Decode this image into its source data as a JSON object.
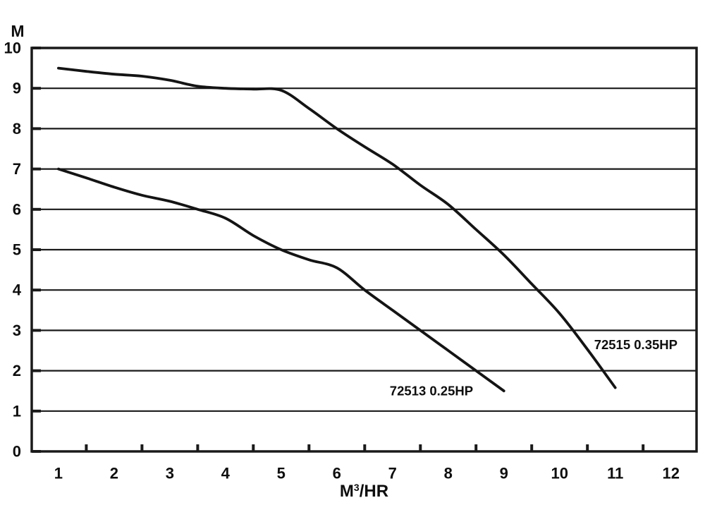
{
  "page": {
    "background": "#ffffff",
    "text_color": "#0e0e0e"
  },
  "y_axis": {
    "title": "M"
  },
  "x_axis": {
    "title_main": "M",
    "title_sup": "3",
    "title_rest": "/HR",
    "title_full": "M³/HR"
  },
  "chart_data": {
    "type": "line",
    "title": "",
    "xlabel": "M³/HR",
    "ylabel": "M",
    "xlim": [
      0.52,
      12.46
    ],
    "ylim": [
      0,
      10
    ],
    "x_tick_labels": [
      1,
      2,
      3,
      4,
      5,
      6,
      7,
      8,
      9,
      10,
      11,
      12
    ],
    "x_tick_marks": [
      1.5,
      2.5,
      3.5,
      4.5,
      5.5,
      6.5,
      7.5,
      8.5,
      9.5,
      10.5,
      11.5
    ],
    "y_tick_labels": [
      0,
      1,
      2,
      3,
      4,
      5,
      6,
      7,
      8,
      9,
      10
    ],
    "grid": "horizontal-only",
    "legend_position": "inline-annotations",
    "line_color": "#141414",
    "grid_color": "#1a1a1a",
    "series": [
      {
        "id": "72515-035hp",
        "name": "72515 0.35HP",
        "label": {
          "text": "72515 0.35HP",
          "x": 10.62,
          "y": 2.65,
          "anchor": "start"
        },
        "points": [
          [
            1,
            9.5
          ],
          [
            1.5,
            9.42
          ],
          [
            2,
            9.35
          ],
          [
            2.5,
            9.3
          ],
          [
            3,
            9.2
          ],
          [
            3.5,
            9.05
          ],
          [
            4,
            9.0
          ],
          [
            4.5,
            8.98
          ],
          [
            5,
            8.95
          ],
          [
            5.5,
            8.5
          ],
          [
            6,
            8.0
          ],
          [
            6.5,
            7.55
          ],
          [
            7,
            7.12
          ],
          [
            7.5,
            6.6
          ],
          [
            8,
            6.12
          ],
          [
            8.5,
            5.5
          ],
          [
            9,
            4.87
          ],
          [
            9.5,
            4.15
          ],
          [
            10,
            3.42
          ],
          [
            10.5,
            2.53
          ],
          [
            11,
            1.58
          ]
        ]
      },
      {
        "id": "72513-025hp",
        "name": "72513 0.25HP",
        "label": {
          "text": "72513 0.25HP",
          "x": 6.95,
          "y": 1.5,
          "anchor": "start"
        },
        "points": [
          [
            1,
            7.0
          ],
          [
            1.5,
            6.78
          ],
          [
            2,
            6.55
          ],
          [
            2.5,
            6.35
          ],
          [
            3,
            6.2
          ],
          [
            3.5,
            6.0
          ],
          [
            4,
            5.78
          ],
          [
            4.5,
            5.35
          ],
          [
            5,
            5.0
          ],
          [
            5.5,
            4.75
          ],
          [
            6,
            4.55
          ],
          [
            6.5,
            4.0
          ],
          [
            7,
            3.5
          ],
          [
            7.5,
            3.0
          ],
          [
            8,
            2.5
          ],
          [
            8.5,
            2.0
          ],
          [
            9,
            1.5
          ]
        ]
      }
    ]
  }
}
